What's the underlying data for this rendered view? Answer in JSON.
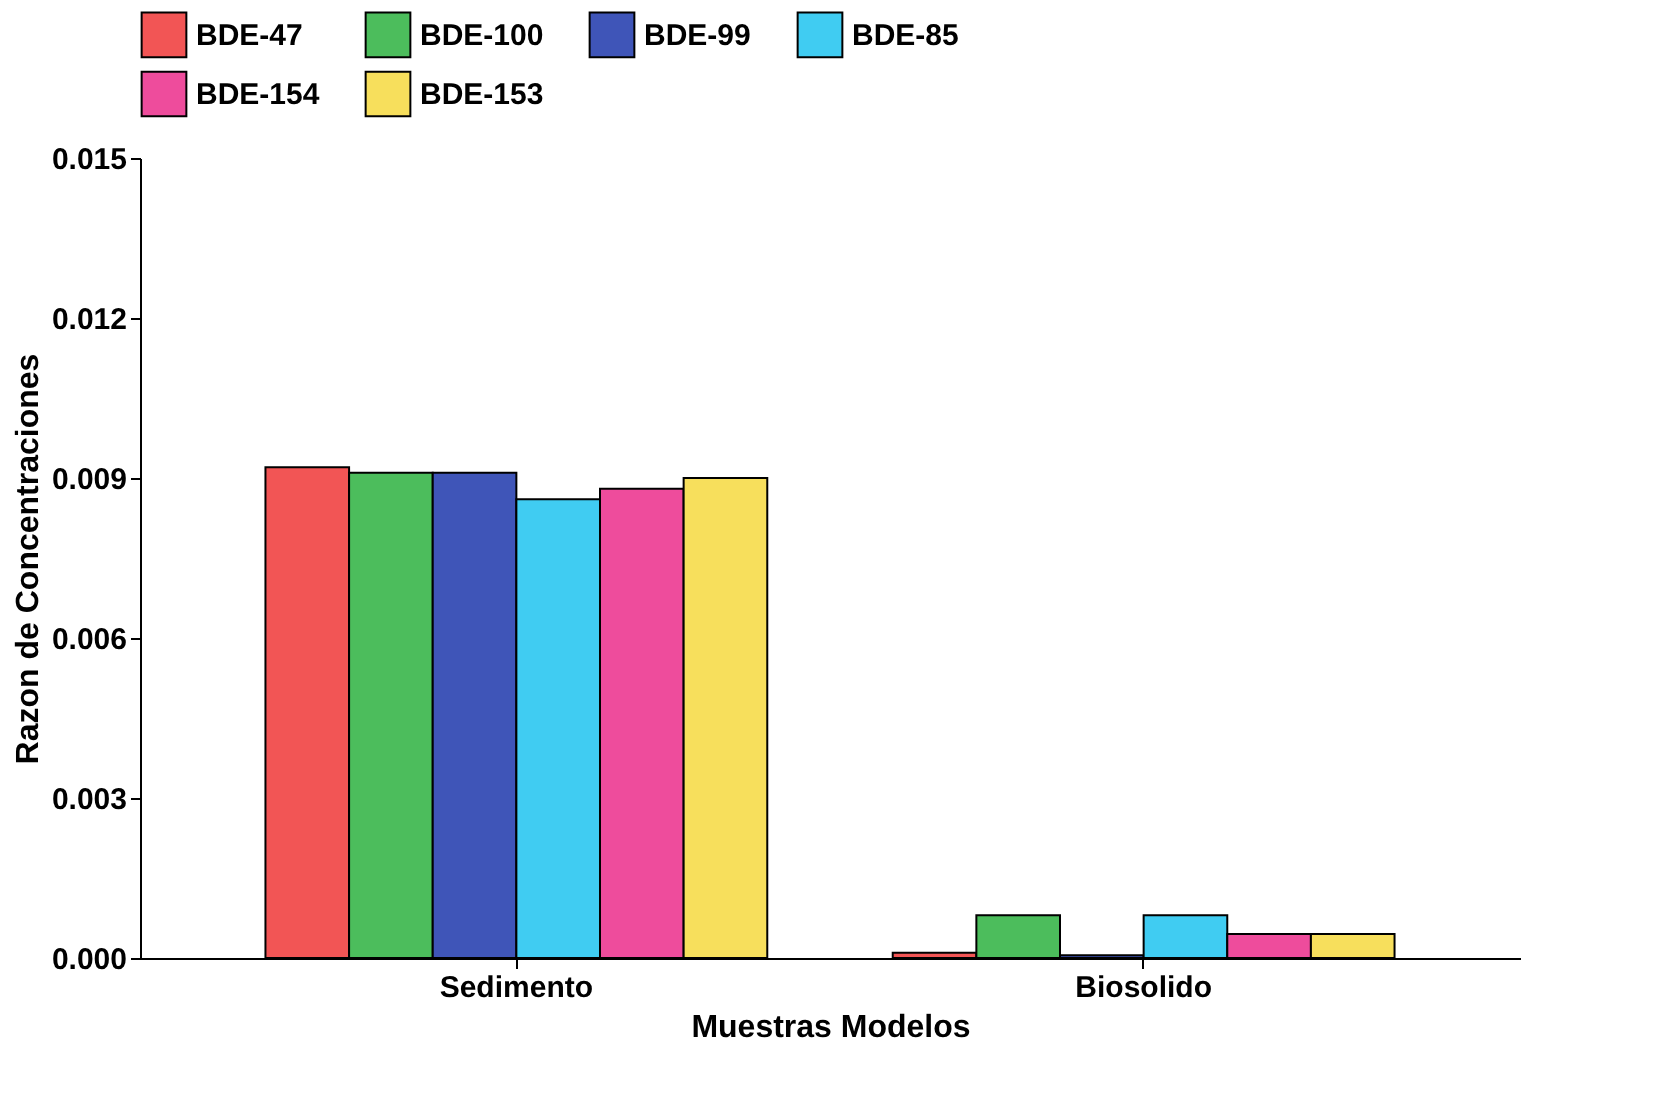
{
  "chart_data": {
    "type": "bar",
    "xlabel": "Muestras Modelos",
    "ylabel": "Razon de Concentraciones",
    "categories": [
      "Sedimento",
      "Biosolido"
    ],
    "series": [
      {
        "name": "BDE-47",
        "color": "#f25555",
        "values": [
          0.0092,
          0.0001
        ]
      },
      {
        "name": "BDE-100",
        "color": "#4cbd5c",
        "values": [
          0.0091,
          0.0008
        ]
      },
      {
        "name": "BDE-99",
        "color": "#3f55b8",
        "values": [
          0.0091,
          5e-05
        ]
      },
      {
        "name": "BDE-85",
        "color": "#40ccf2",
        "values": [
          0.0086,
          0.0008
        ]
      },
      {
        "name": "BDE-154",
        "color": "#ee4c9c",
        "values": [
          0.0088,
          0.00045
        ]
      },
      {
        "name": "BDE-153",
        "color": "#f7df5c",
        "values": [
          0.009,
          0.00045
        ]
      }
    ],
    "ylim": [
      0,
      0.015
    ],
    "yticks": [
      "0.000",
      0.003,
      0.006,
      0.009,
      0.012,
      0.015
    ],
    "grid": false,
    "legend": "top"
  }
}
